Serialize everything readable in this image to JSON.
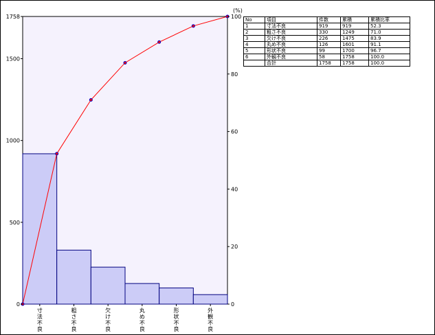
{
  "chart_data": {
    "type": "bar",
    "subtype": "pareto",
    "title": "",
    "xlabel": "",
    "ylabel": "",
    "y2label": "(%)",
    "categories": [
      "寸法不良",
      "粗さ不良",
      "欠け不良",
      "丸め不良",
      "形状不良",
      "外観不良"
    ],
    "values": [
      919,
      330,
      226,
      126,
      99,
      58
    ],
    "cumulative_percent": [
      0,
      52.3,
      71.0,
      83.9,
      91.1,
      96.7,
      100.0
    ],
    "ylim": [
      0,
      1758
    ],
    "y2lim": [
      0,
      100
    ],
    "y_ticks": [
      0,
      500,
      1000,
      1500,
      1758
    ],
    "y2_ticks": [
      0,
      20,
      40,
      60,
      80,
      100
    ],
    "grid": false,
    "legend": "none",
    "colors": {
      "bar_fill": "#ccccf7",
      "bar_stroke": "#00007f",
      "line": "#ff0000",
      "marker": "#0000cc",
      "plot_bg": "#f5f2fd"
    }
  },
  "table": {
    "headers": [
      "No",
      "項目",
      "件数",
      "累積",
      "累積比率"
    ],
    "rows": [
      [
        "1",
        "寸法不良",
        "919",
        "919",
        "52.3"
      ],
      [
        "2",
        "粗さ不良",
        "330",
        "1249",
        "71.0"
      ],
      [
        "3",
        "欠け不良",
        "226",
        "1475",
        "83.9"
      ],
      [
        "4",
        "丸め不良",
        "126",
        "1601",
        "91.1"
      ],
      [
        "5",
        "形状不良",
        "99",
        "1700",
        "96.7"
      ],
      [
        "6",
        "外観不良",
        "58",
        "1758",
        "100.0"
      ],
      [
        "",
        "合計",
        "1758",
        "1758",
        "100.0"
      ]
    ]
  }
}
